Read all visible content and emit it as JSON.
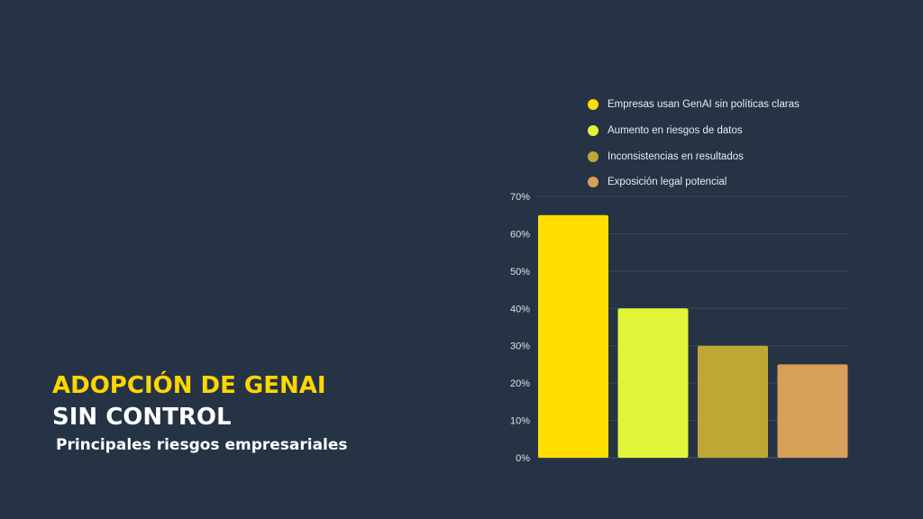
{
  "heading": {
    "line1": "ADOPCIÓN DE GENAI",
    "line2": "SIN CONTROL",
    "subtitle": "Principales riesgos empresariales"
  },
  "colors": {
    "background": "#253345",
    "accent": "#FFD600",
    "gridline": "#3A485A",
    "tick_label": "#DCE2EA"
  },
  "chart_data": {
    "type": "bar",
    "categories": [
      "Empresas usan GenAI sin políticas claras",
      "Aumento en riesgos de datos",
      "Inconsistencias en resultados",
      "Exposición legal potencial"
    ],
    "values": [
      65,
      40,
      30,
      25
    ],
    "colors": [
      "#FFDE00",
      "#E0F538",
      "#BFA734",
      "#D79F58"
    ],
    "unit": "%",
    "ylim": [
      0,
      70
    ],
    "yticks": [
      "0%",
      "10%",
      "20%",
      "30%",
      "40%",
      "50%",
      "60%",
      "70%"
    ],
    "grid": true,
    "legend_position": "top"
  }
}
